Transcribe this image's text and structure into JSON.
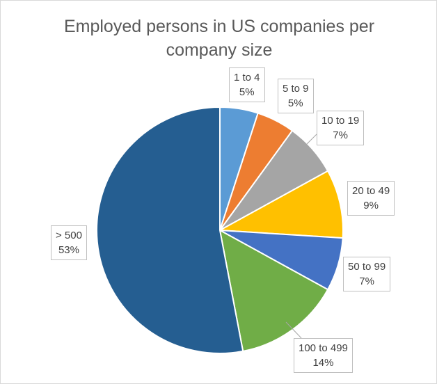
{
  "chart_data": {
    "type": "pie",
    "title_lines": [
      "Employed persons in US companies per",
      "company size"
    ],
    "categories": [
      "1 to 4",
      "5 to 9",
      "10 to 19",
      "20 to 49",
      "50 to 99",
      "100 to 499",
      "> 500"
    ],
    "values": [
      5,
      5,
      7,
      9,
      7,
      14,
      53
    ],
    "value_labels": [
      "5%",
      "5%",
      "7%",
      "9%",
      "7%",
      "14%",
      "53%"
    ],
    "colors": [
      "#5B9BD5",
      "#ED7D31",
      "#A5A5A5",
      "#FFC000",
      "#4472C4",
      "#70AD47",
      "#255E91"
    ],
    "start_angle_deg": 0,
    "direction": "clockwise",
    "legend": "none",
    "data_labels": "callouts"
  }
}
